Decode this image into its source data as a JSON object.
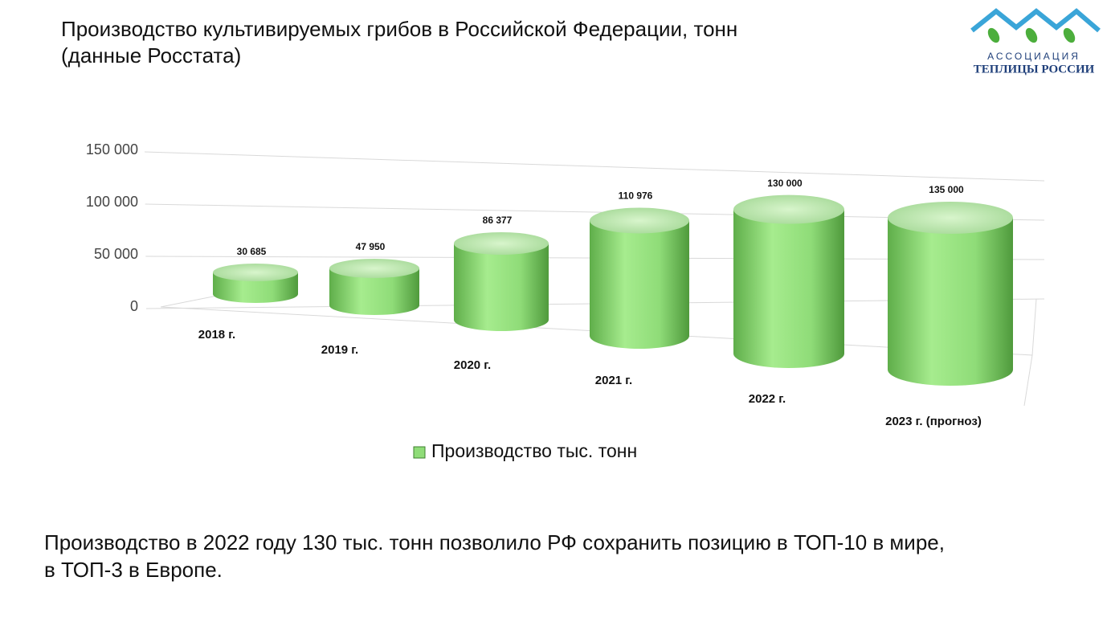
{
  "header": {
    "title": "Производство культивируемых грибов в Российской Федерации, тонн",
    "subtitle": "(данные Росстата)"
  },
  "logo": {
    "top": "АССОЦИАЦИЯ",
    "bottom": "ТЕПЛИЦЫ РОССИИ"
  },
  "chart_data": {
    "type": "cylinder3d",
    "categories": [
      "2018 г.",
      "2019 г.",
      "2020 г.",
      "2021 г.",
      "2022 г.",
      "2023 г. (прогноз)"
    ],
    "series": [
      {
        "name": "Производство тыс. тонн",
        "color": "#8fdc78",
        "values": [
          30685,
          47950,
          86377,
          110976,
          130000,
          135000
        ],
        "value_labels": [
          "30 685",
          "47 950",
          "86 377",
          "110 976",
          "130 000",
          "135 000"
        ]
      }
    ],
    "ylim": [
      0,
      150000
    ],
    "yticks": [
      0,
      {
        "value": 50000,
        "label": "50 000"
      },
      {
        "value": 100000,
        "label": "100 000"
      },
      {
        "value": 150000,
        "label": "150 000"
      }
    ],
    "grid": true,
    "legend": "bottom"
  },
  "footer": {
    "text": "Производство в 2022 году 130 тыс. тонн позволило РФ сохранить позицию в ТОП-10 в мире,",
    "text2": "в ТОП-3 в Европе."
  }
}
